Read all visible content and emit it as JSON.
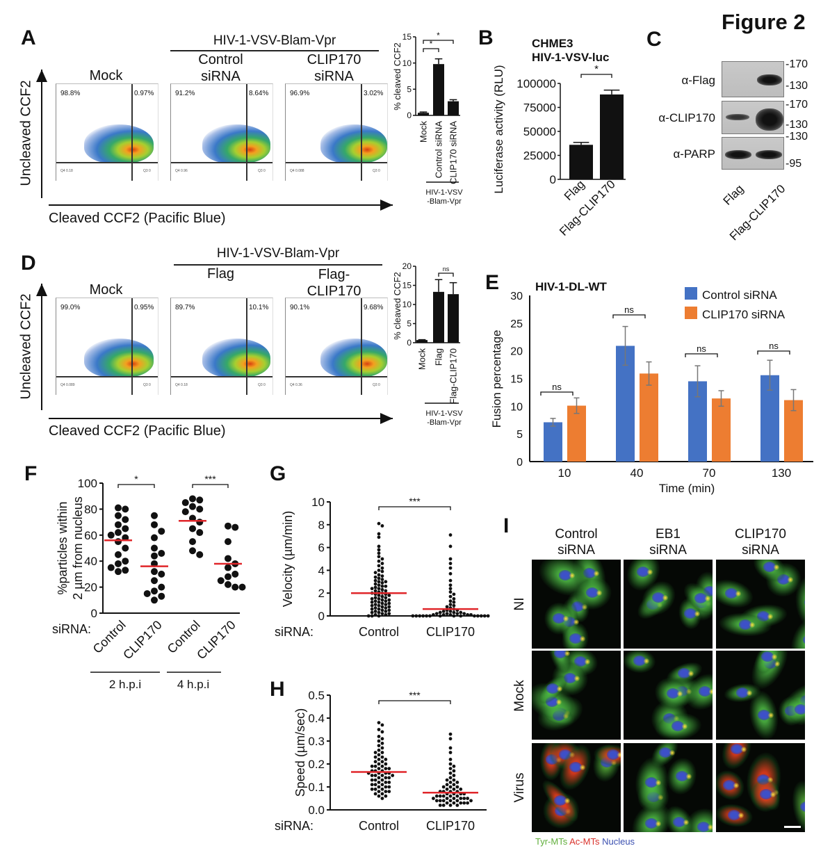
{
  "figure_title": "Figure 2",
  "panels": {
    "A": {
      "label": "A",
      "header": "HIV-1-VSV-Blam-Vpr",
      "conditions": [
        {
          "line1": "Mock",
          "line2": ""
        },
        {
          "line1": "Control",
          "line2": "siRNA"
        },
        {
          "line1": "CLIP170",
          "line2": "siRNA"
        }
      ],
      "y_axis": "Uncleaved CCF2",
      "x_axis": "Cleaved CCF2 (Pacific Blue)",
      "flow": [
        {
          "uncleaved": "98.8%",
          "cleaved": "0.97%",
          "q4": "Q4 0.18",
          "q3": "Q3 0"
        },
        {
          "uncleaved": "91.2%",
          "cleaved": "8.64%",
          "q4": "Q4 0.96",
          "q3": "Q3 0"
        },
        {
          "uncleaved": "96.9%",
          "cleaved": "3.02%",
          "q4": "Q4 0.088",
          "q3": "Q3 0"
        }
      ]
    },
    "B": {
      "label": "B"
    },
    "C": {
      "label": "C",
      "rows": [
        "α-Flag",
        "α-CLIP170",
        "α-PARP"
      ],
      "markers": [
        "-170",
        "-130",
        "-170",
        "-130",
        "-130",
        "-95"
      ],
      "lanes": [
        "Flag",
        "Flag-CLIP170"
      ]
    },
    "D": {
      "label": "D",
      "header": "HIV-1-VSV-Blam-Vpr",
      "conditions": [
        {
          "line1": "Mock",
          "line2": ""
        },
        {
          "line1": "Flag",
          "line2": ""
        },
        {
          "line1": "Flag-",
          "line2": "CLIP170"
        }
      ],
      "y_axis": "Uncleaved CCF2",
      "x_axis": "Cleaved CCF2 (Pacific Blue)",
      "flow": [
        {
          "uncleaved": "99.0%",
          "cleaved": "0.95%",
          "q4": "Q4 0.089",
          "q3": "Q3 0"
        },
        {
          "uncleaved": "89.7%",
          "cleaved": "10.1%",
          "q4": "Q4 0.18",
          "q3": "Q3 0"
        },
        {
          "uncleaved": "90.1%",
          "cleaved": "9.68%",
          "q4": "Q4 0.36",
          "q3": "Q3 0"
        }
      ]
    },
    "E": {
      "label": "E"
    },
    "F": {
      "label": "F"
    },
    "G": {
      "label": "G"
    },
    "H": {
      "label": "H"
    },
    "I": {
      "label": "I",
      "columns": [
        {
          "line1": "Control",
          "line2": "siRNA"
        },
        {
          "line1": "EB1",
          "line2": "siRNA"
        },
        {
          "line1": "CLIP170",
          "line2": "siRNA"
        }
      ],
      "rows": [
        "NI",
        "Mock",
        "Virus"
      ],
      "legend": [
        {
          "text": "Tyr-MTs",
          "color": "#5fae3a"
        },
        {
          "text": "Ac-MTs",
          "color": "#d9302a"
        },
        {
          "text": "Nucleus",
          "color": "#3a4fb0"
        }
      ]
    }
  },
  "chart_data": [
    {
      "id": "A-bar",
      "type": "bar",
      "categories": [
        "Mock",
        "Control siRNA",
        "CLIP170 siRNA"
      ],
      "values": [
        0.5,
        9.8,
        2.7
      ],
      "errors": [
        0.15,
        1.0,
        0.3
      ],
      "ylabel": "% cleaved CCF2",
      "ylim": [
        0,
        15
      ],
      "yticks": [
        0,
        5,
        10,
        15
      ],
      "group_label": [
        "HIV-1-VSV",
        "-Blam-Vpr"
      ],
      "significance": [
        {
          "pair": [
            0,
            1
          ],
          "label": "*"
        },
        {
          "pair": [
            0,
            2
          ],
          "label": "*"
        }
      ]
    },
    {
      "id": "B-bar",
      "type": "bar",
      "title": [
        "CHME3",
        "HIV-1-VSV-luc"
      ],
      "categories": [
        "Flag",
        "Flag-CLIP170"
      ],
      "values": [
        36000,
        88500
      ],
      "errors": [
        2500,
        4500
      ],
      "ylabel": "Luciferase activity (RLU)",
      "ylim": [
        0,
        100000
      ],
      "yticks": [
        0,
        25000,
        50000,
        75000,
        100000
      ],
      "significance": [
        {
          "pair": [
            0,
            1
          ],
          "label": "*"
        }
      ]
    },
    {
      "id": "D-bar",
      "type": "bar",
      "categories": [
        "Mock",
        "Flag",
        "Flag-CLIP170"
      ],
      "values": [
        0.7,
        13.3,
        12.7
      ],
      "errors": [
        0.1,
        3.2,
        3.0
      ],
      "ylabel": "% cleaved CCF2",
      "ylim": [
        0,
        20
      ],
      "yticks": [
        0,
        5,
        10,
        15,
        20
      ],
      "group_label": [
        "HIV-1-VSV",
        "-Blam-Vpr"
      ],
      "significance": [
        {
          "pair": [
            1,
            2
          ],
          "label": "ns"
        }
      ]
    },
    {
      "id": "E-bar",
      "type": "bar",
      "title": "HIV-1-DL-WT",
      "categories": [
        "10",
        "40",
        "70",
        "130"
      ],
      "series": [
        {
          "name": "Control siRNA",
          "color": "#4472c4",
          "values": [
            7.1,
            20.9,
            14.5,
            15.6
          ],
          "errors": [
            0.7,
            3.5,
            2.8,
            2.7
          ]
        },
        {
          "name": "CLIP170 siRNA",
          "color": "#ed7d31",
          "values": [
            10.1,
            15.9,
            11.4,
            11.1
          ],
          "errors": [
            1.4,
            2.1,
            1.4,
            1.9
          ]
        }
      ],
      "xlabel": "Time (min)",
      "ylabel": "Fusion percentage",
      "ylim": [
        0,
        30
      ],
      "yticks": [
        0,
        5,
        10,
        15,
        20,
        25,
        30
      ],
      "legend": "top-right",
      "significance": [
        "ns",
        "ns",
        "ns",
        "ns"
      ]
    },
    {
      "id": "F-scatter",
      "type": "scatter",
      "ylabel": [
        "%particles within",
        "2 µm from nucleus"
      ],
      "ylim": [
        0,
        100
      ],
      "yticks": [
        0,
        20,
        40,
        60,
        80,
        100
      ],
      "row_label": "siRNA:",
      "groups": [
        {
          "name": "Control",
          "timepoint": "2 h.p.i",
          "median": 56,
          "values": [
            81,
            80,
            75,
            72,
            68,
            65,
            62,
            60,
            58,
            55,
            50,
            45,
            40,
            38,
            35,
            33,
            32
          ]
        },
        {
          "name": "CLIP170",
          "timepoint": "2 h.p.i",
          "median": 36,
          "values": [
            75,
            68,
            63,
            58,
            50,
            46,
            44,
            38,
            32,
            30,
            25,
            20,
            17,
            15,
            13,
            10
          ]
        },
        {
          "name": "Control",
          "timepoint": "4 h.p.i",
          "median": 71,
          "values": [
            88,
            87,
            85,
            82,
            80,
            78,
            73,
            70,
            65,
            62,
            55,
            48,
            45
          ]
        },
        {
          "name": "CLIP170",
          "timepoint": "4 h.p.i",
          "median": 38,
          "values": [
            67,
            66,
            55,
            42,
            38,
            35,
            30,
            28,
            25,
            22,
            20,
            20
          ]
        }
      ],
      "timepoints": [
        "2 h.p.i",
        "4 h.p.i"
      ],
      "significance": [
        {
          "pair": [
            0,
            1
          ],
          "label": "*"
        },
        {
          "pair": [
            2,
            3
          ],
          "label": "***"
        }
      ]
    },
    {
      "id": "G-scatter",
      "type": "scatter",
      "ylabel": "Velocity (µm/min)",
      "ylim": [
        0,
        10
      ],
      "yticks": [
        0,
        2,
        4,
        6,
        8,
        10
      ],
      "row_label": "siRNA:",
      "groups": [
        {
          "name": "Control",
          "median": 2.0,
          "values": [
            8.1,
            7.9,
            7.2,
            6.9,
            6.1,
            5.8,
            5.5,
            5.2,
            5.0,
            4.8,
            4.6,
            4.4,
            4.2,
            4.0,
            3.9,
            3.8,
            3.6,
            3.5,
            3.4,
            3.3,
            3.2,
            3.1,
            3.0,
            3.0,
            2.9,
            2.8,
            2.7,
            2.6,
            2.6,
            2.5,
            2.4,
            2.4,
            2.3,
            2.2,
            2.2,
            2.1,
            2.0,
            2.0,
            1.9,
            1.9,
            1.8,
            1.8,
            1.7,
            1.6,
            1.6,
            1.5,
            1.5,
            1.4,
            1.4,
            1.3,
            1.3,
            1.2,
            1.2,
            1.1,
            1.1,
            1.0,
            1.0,
            0.9,
            0.9,
            0.8,
            0.8,
            0.7,
            0.7,
            0.6,
            0.6,
            0.5,
            0.5,
            0.4,
            0.4,
            0.3,
            0.3,
            0.2,
            0.2,
            0.1,
            0.1,
            0.0,
            0.0,
            0.0
          ]
        },
        {
          "name": "CLIP170",
          "median": 0.6,
          "values": [
            7.1,
            6.1,
            5.0,
            4.6,
            4.2,
            3.7,
            3.1,
            2.7,
            2.4,
            2.1,
            1.9,
            1.7,
            1.5,
            1.3,
            1.2,
            1.0,
            0.9,
            0.8,
            0.7,
            0.6,
            0.5,
            0.5,
            0.4,
            0.4,
            0.3,
            0.3,
            0.3,
            0.2,
            0.2,
            0.2,
            0.2,
            0.1,
            0.1,
            0.1,
            0.1,
            0.1,
            0.0,
            0.0,
            0.0,
            0.0,
            0.0,
            0.0,
            0.0,
            0.0,
            0.0,
            0.0,
            0.0,
            0.0,
            0.0,
            0.0
          ]
        }
      ],
      "significance": [
        {
          "pair": [
            0,
            1
          ],
          "label": "***"
        }
      ]
    },
    {
      "id": "H-scatter",
      "type": "scatter",
      "ylabel": "Speed (µm/sec)",
      "ylim": [
        0,
        0.5
      ],
      "yticks": [
        "0.0",
        "0.1",
        "0.2",
        "0.3",
        "0.4",
        "0.5"
      ],
      "row_label": "siRNA:",
      "groups": [
        {
          "name": "Control",
          "median": 0.165,
          "values": [
            0.38,
            0.37,
            0.35,
            0.34,
            0.32,
            0.31,
            0.3,
            0.29,
            0.28,
            0.27,
            0.26,
            0.25,
            0.25,
            0.24,
            0.23,
            0.23,
            0.22,
            0.22,
            0.21,
            0.21,
            0.2,
            0.2,
            0.19,
            0.19,
            0.19,
            0.18,
            0.18,
            0.18,
            0.17,
            0.17,
            0.17,
            0.16,
            0.16,
            0.16,
            0.16,
            0.15,
            0.15,
            0.15,
            0.15,
            0.14,
            0.14,
            0.14,
            0.13,
            0.13,
            0.13,
            0.12,
            0.12,
            0.12,
            0.11,
            0.11,
            0.11,
            0.1,
            0.1,
            0.1,
            0.09,
            0.09,
            0.09,
            0.08,
            0.08,
            0.08,
            0.07,
            0.07,
            0.06,
            0.06,
            0.05
          ]
        },
        {
          "name": "CLIP170",
          "median": 0.075,
          "values": [
            0.33,
            0.31,
            0.27,
            0.25,
            0.22,
            0.2,
            0.19,
            0.18,
            0.17,
            0.16,
            0.15,
            0.14,
            0.13,
            0.13,
            0.12,
            0.12,
            0.11,
            0.11,
            0.1,
            0.1,
            0.1,
            0.09,
            0.09,
            0.09,
            0.08,
            0.08,
            0.08,
            0.08,
            0.07,
            0.07,
            0.07,
            0.07,
            0.06,
            0.06,
            0.06,
            0.06,
            0.06,
            0.05,
            0.05,
            0.05,
            0.05,
            0.05,
            0.05,
            0.04,
            0.04,
            0.04,
            0.04,
            0.04,
            0.04,
            0.03,
            0.03,
            0.03,
            0.03,
            0.03,
            0.02,
            0.02,
            0.02,
            0.02
          ]
        }
      ],
      "significance": [
        {
          "pair": [
            0,
            1
          ],
          "label": "***"
        }
      ]
    }
  ]
}
